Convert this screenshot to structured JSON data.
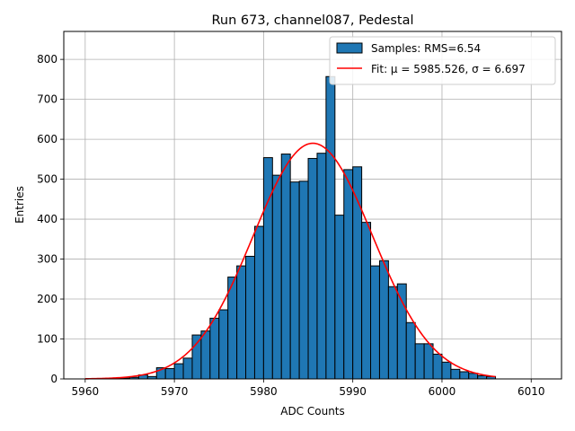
{
  "chart_data": {
    "type": "bar",
    "title": "Run 673, channel087, Pedestal",
    "xlabel": "ADC Counts",
    "ylabel": "Entries",
    "xlim": [
      5957.6,
      6013.4
    ],
    "ylim": [
      0,
      870
    ],
    "xticks": [
      5960,
      5970,
      5980,
      5990,
      6000,
      6010
    ],
    "yticks": [
      0,
      100,
      200,
      300,
      400,
      500,
      600,
      700,
      800
    ],
    "grid": true,
    "legend_position": "top-right",
    "histogram": {
      "name": "Samples: RMS=6.54",
      "color": "#1f77b4",
      "bin_width": 1,
      "bins": [
        [
          5963,
          1
        ],
        [
          5964,
          2
        ],
        [
          5965,
          4
        ],
        [
          5966,
          10
        ],
        [
          5967,
          6
        ],
        [
          5968,
          28
        ],
        [
          5969,
          26
        ],
        [
          5970,
          38
        ],
        [
          5971,
          52
        ],
        [
          5972,
          110
        ],
        [
          5973,
          120
        ],
        [
          5974,
          152
        ],
        [
          5975,
          173
        ],
        [
          5976,
          255
        ],
        [
          5977,
          283
        ],
        [
          5978,
          307
        ],
        [
          5979,
          382
        ],
        [
          5980,
          554
        ],
        [
          5981,
          510
        ],
        [
          5982,
          563
        ],
        [
          5983,
          493
        ],
        [
          5984,
          495
        ],
        [
          5985,
          552
        ],
        [
          5986,
          565
        ],
        [
          5987,
          757
        ],
        [
          5988,
          410
        ],
        [
          5989,
          524
        ],
        [
          5990,
          531
        ],
        [
          5991,
          392
        ],
        [
          5992,
          283
        ],
        [
          5993,
          296
        ],
        [
          5994,
          231
        ],
        [
          5995,
          238
        ],
        [
          5996,
          141
        ],
        [
          5997,
          88
        ],
        [
          5998,
          88
        ],
        [
          5999,
          62
        ],
        [
          6000,
          42
        ],
        [
          6001,
          24
        ],
        [
          6002,
          18
        ],
        [
          6003,
          14
        ],
        [
          6004,
          8
        ],
        [
          6005,
          6
        ]
      ]
    },
    "fit": {
      "name": "Fit: μ = 5985.526, σ = 6.697",
      "color": "#ff0000",
      "mu": 5985.526,
      "sigma": 6.697,
      "amplitude": 590,
      "x_range": [
        5960,
        6006
      ]
    }
  }
}
